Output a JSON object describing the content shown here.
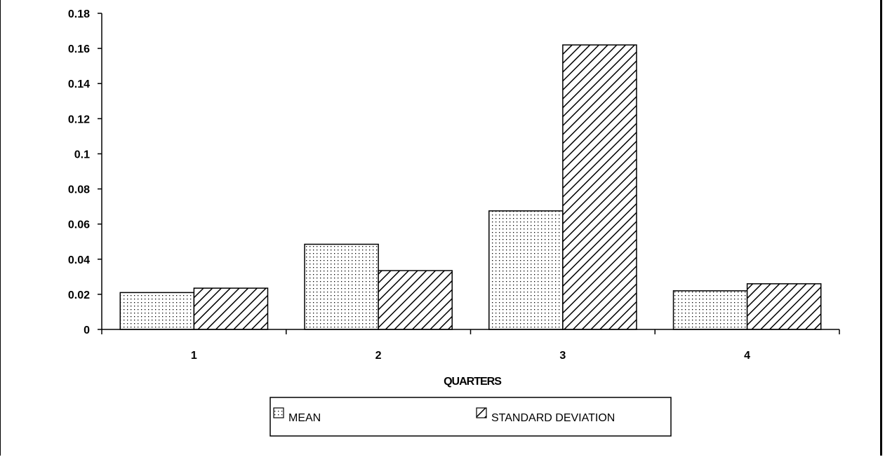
{
  "chart_data": {
    "type": "bar",
    "categories": [
      "1",
      "2",
      "3",
      "4"
    ],
    "series": [
      {
        "name": "MEAN",
        "values": [
          0.021,
          0.0485,
          0.0675,
          0.022
        ],
        "pattern": "dots"
      },
      {
        "name": "STANDARD DEVIATION",
        "values": [
          0.0235,
          0.0335,
          0.162,
          0.026
        ],
        "pattern": "hatch"
      }
    ],
    "title": "",
    "xlabel": "QUARTERS",
    "ylabel": "",
    "ylim": [
      0,
      0.18
    ],
    "yticks": [
      0,
      0.02,
      0.04,
      0.06,
      0.08,
      0.1,
      0.12,
      0.14,
      0.16,
      0.18
    ],
    "ytick_labels": [
      "0",
      "0.02",
      "0.04",
      "0.06",
      "0.08",
      "0.1",
      "0.12",
      "0.14",
      "0.16",
      "0.18"
    ],
    "grid": false,
    "legend_position": "bottom-center"
  },
  "colors": {
    "axis": "#000000",
    "background": "#ffffff",
    "bar_fill": "#ffffff",
    "pattern": "#000000"
  }
}
